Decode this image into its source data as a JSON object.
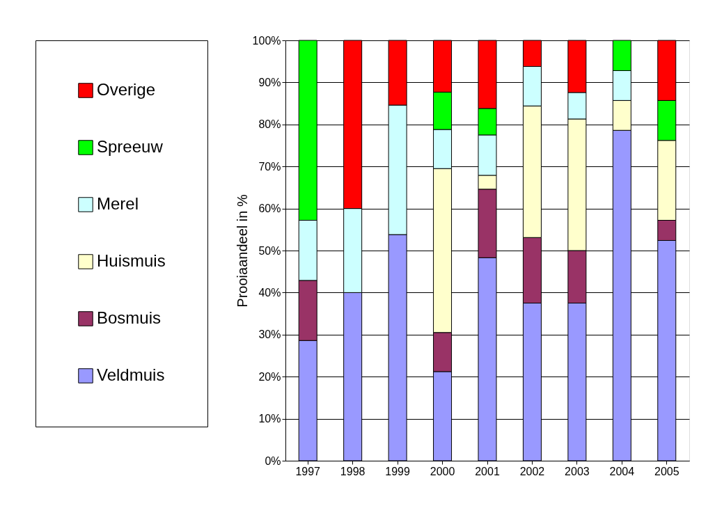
{
  "chart_data": {
    "type": "bar",
    "stacked": true,
    "ylabel": "Prooiaandeel in %",
    "categories": [
      "1997",
      "1998",
      "1999",
      "2000",
      "2001",
      "2002",
      "2003",
      "2004",
      "2005"
    ],
    "series": [
      {
        "name": "Veldmuis",
        "color": "#9999ff",
        "values": [
          28.6,
          40,
          53.8,
          21.2,
          48.3,
          37.5,
          37.5,
          78.6,
          52.4
        ]
      },
      {
        "name": "Bosmuis",
        "color": "#993366",
        "values": [
          14.3,
          null,
          null,
          9.3,
          16.3,
          15.6,
          12.5,
          null,
          4.8
        ]
      },
      {
        "name": "Huismuis",
        "color": "#ffffcc",
        "values": [
          null,
          null,
          null,
          39.0,
          3.3,
          31.3,
          31.3,
          7.1,
          19.0
        ]
      },
      {
        "name": "Merel",
        "color": "#ccffff",
        "values": [
          14.3,
          20,
          30.8,
          9.3,
          9.6,
          9.4,
          6.3,
          7.1,
          null
        ]
      },
      {
        "name": "Spreeuw",
        "color": "#00ff00",
        "values": [
          42.8,
          null,
          null,
          8.9,
          6.3,
          null,
          null,
          7.2,
          9.5
        ]
      },
      {
        "name": "Overige",
        "color": "#ff0000",
        "values": [
          null,
          40,
          15.4,
          12.3,
          16.2,
          6.2,
          12.4,
          null,
          14.3
        ]
      }
    ],
    "ylim": [
      0,
      100
    ],
    "yticks": [
      {
        "value": 0,
        "label": "0%"
      },
      {
        "value": 10,
        "label": "10%"
      },
      {
        "value": 20,
        "label": "20%"
      },
      {
        "value": 30,
        "label": "30%"
      },
      {
        "value": 40,
        "label": "40%"
      },
      {
        "value": 50,
        "label": "50%"
      },
      {
        "value": 60,
        "label": "60%"
      },
      {
        "value": 70,
        "label": "70%"
      },
      {
        "value": 80,
        "label": "80%"
      },
      {
        "value": 90,
        "label": "90%"
      },
      {
        "value": 100,
        "label": "100%"
      }
    ],
    "grid": "y",
    "legend": "left"
  }
}
